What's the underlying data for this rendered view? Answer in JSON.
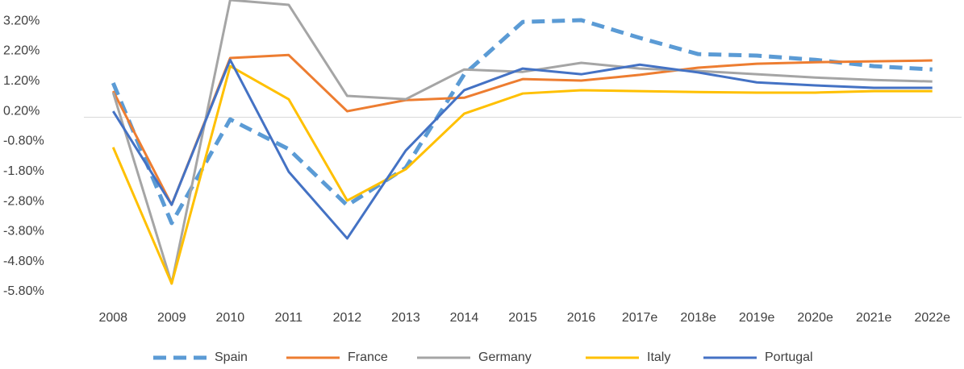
{
  "chart_data": {
    "type": "line",
    "categories": [
      "2008",
      "2009",
      "2010",
      "2011",
      "2012",
      "2013",
      "2014",
      "2015",
      "2016",
      "2017e",
      "2018e",
      "2019e",
      "2020e",
      "2021e",
      "2022e"
    ],
    "ylim": [
      -5.8,
      3.9
    ],
    "yticks": [
      {
        "value": 3.2,
        "label": "3.20%"
      },
      {
        "value": 2.2,
        "label": "2.20%"
      },
      {
        "value": 1.2,
        "label": "1.20%"
      },
      {
        "value": 0.2,
        "label": "0.20%"
      },
      {
        "value": -0.8,
        "label": "-0.80%"
      },
      {
        "value": -1.8,
        "label": "-1.80%"
      },
      {
        "value": -2.8,
        "label": "-2.80%"
      },
      {
        "value": -3.8,
        "label": "-3.80%"
      },
      {
        "value": -4.8,
        "label": "-4.80%"
      },
      {
        "value": -5.8,
        "label": "-5.80%"
      }
    ],
    "grid": false,
    "legend": "bottom",
    "series": [
      {
        "name": "Spain",
        "color": "#5b9bd5",
        "dashed": true,
        "values": [
          1.14,
          -3.52,
          -0.07,
          -1.06,
          -2.93,
          -1.68,
          1.43,
          3.17,
          3.23,
          2.64,
          2.1,
          2.05,
          1.91,
          1.7,
          1.59
        ]
      },
      {
        "name": "France",
        "color": "#ed7d31",
        "values": [
          0.87,
          -2.91,
          1.97,
          2.07,
          0.2,
          0.57,
          0.65,
          1.27,
          1.22,
          1.41,
          1.65,
          1.78,
          1.83,
          1.86,
          1.89
        ]
      },
      {
        "name": "Germany",
        "color": "#a5a5a5",
        "values": [
          0.82,
          -5.53,
          3.9,
          3.74,
          0.71,
          0.6,
          1.59,
          1.51,
          1.81,
          1.62,
          1.54,
          1.43,
          1.32,
          1.24,
          1.19
        ]
      },
      {
        "name": "Italy",
        "color": "#ffc000",
        "values": [
          -1.0,
          -5.53,
          1.7,
          0.6,
          -2.77,
          -1.73,
          0.12,
          0.79,
          0.9,
          0.87,
          0.84,
          0.82,
          0.82,
          0.87,
          0.87
        ]
      },
      {
        "name": "Portugal",
        "color": "#4472c4",
        "values": [
          0.2,
          -2.91,
          1.91,
          -1.81,
          -4.03,
          -1.11,
          0.9,
          1.62,
          1.43,
          1.75,
          1.49,
          1.16,
          1.06,
          0.98,
          0.98
        ]
      }
    ]
  }
}
